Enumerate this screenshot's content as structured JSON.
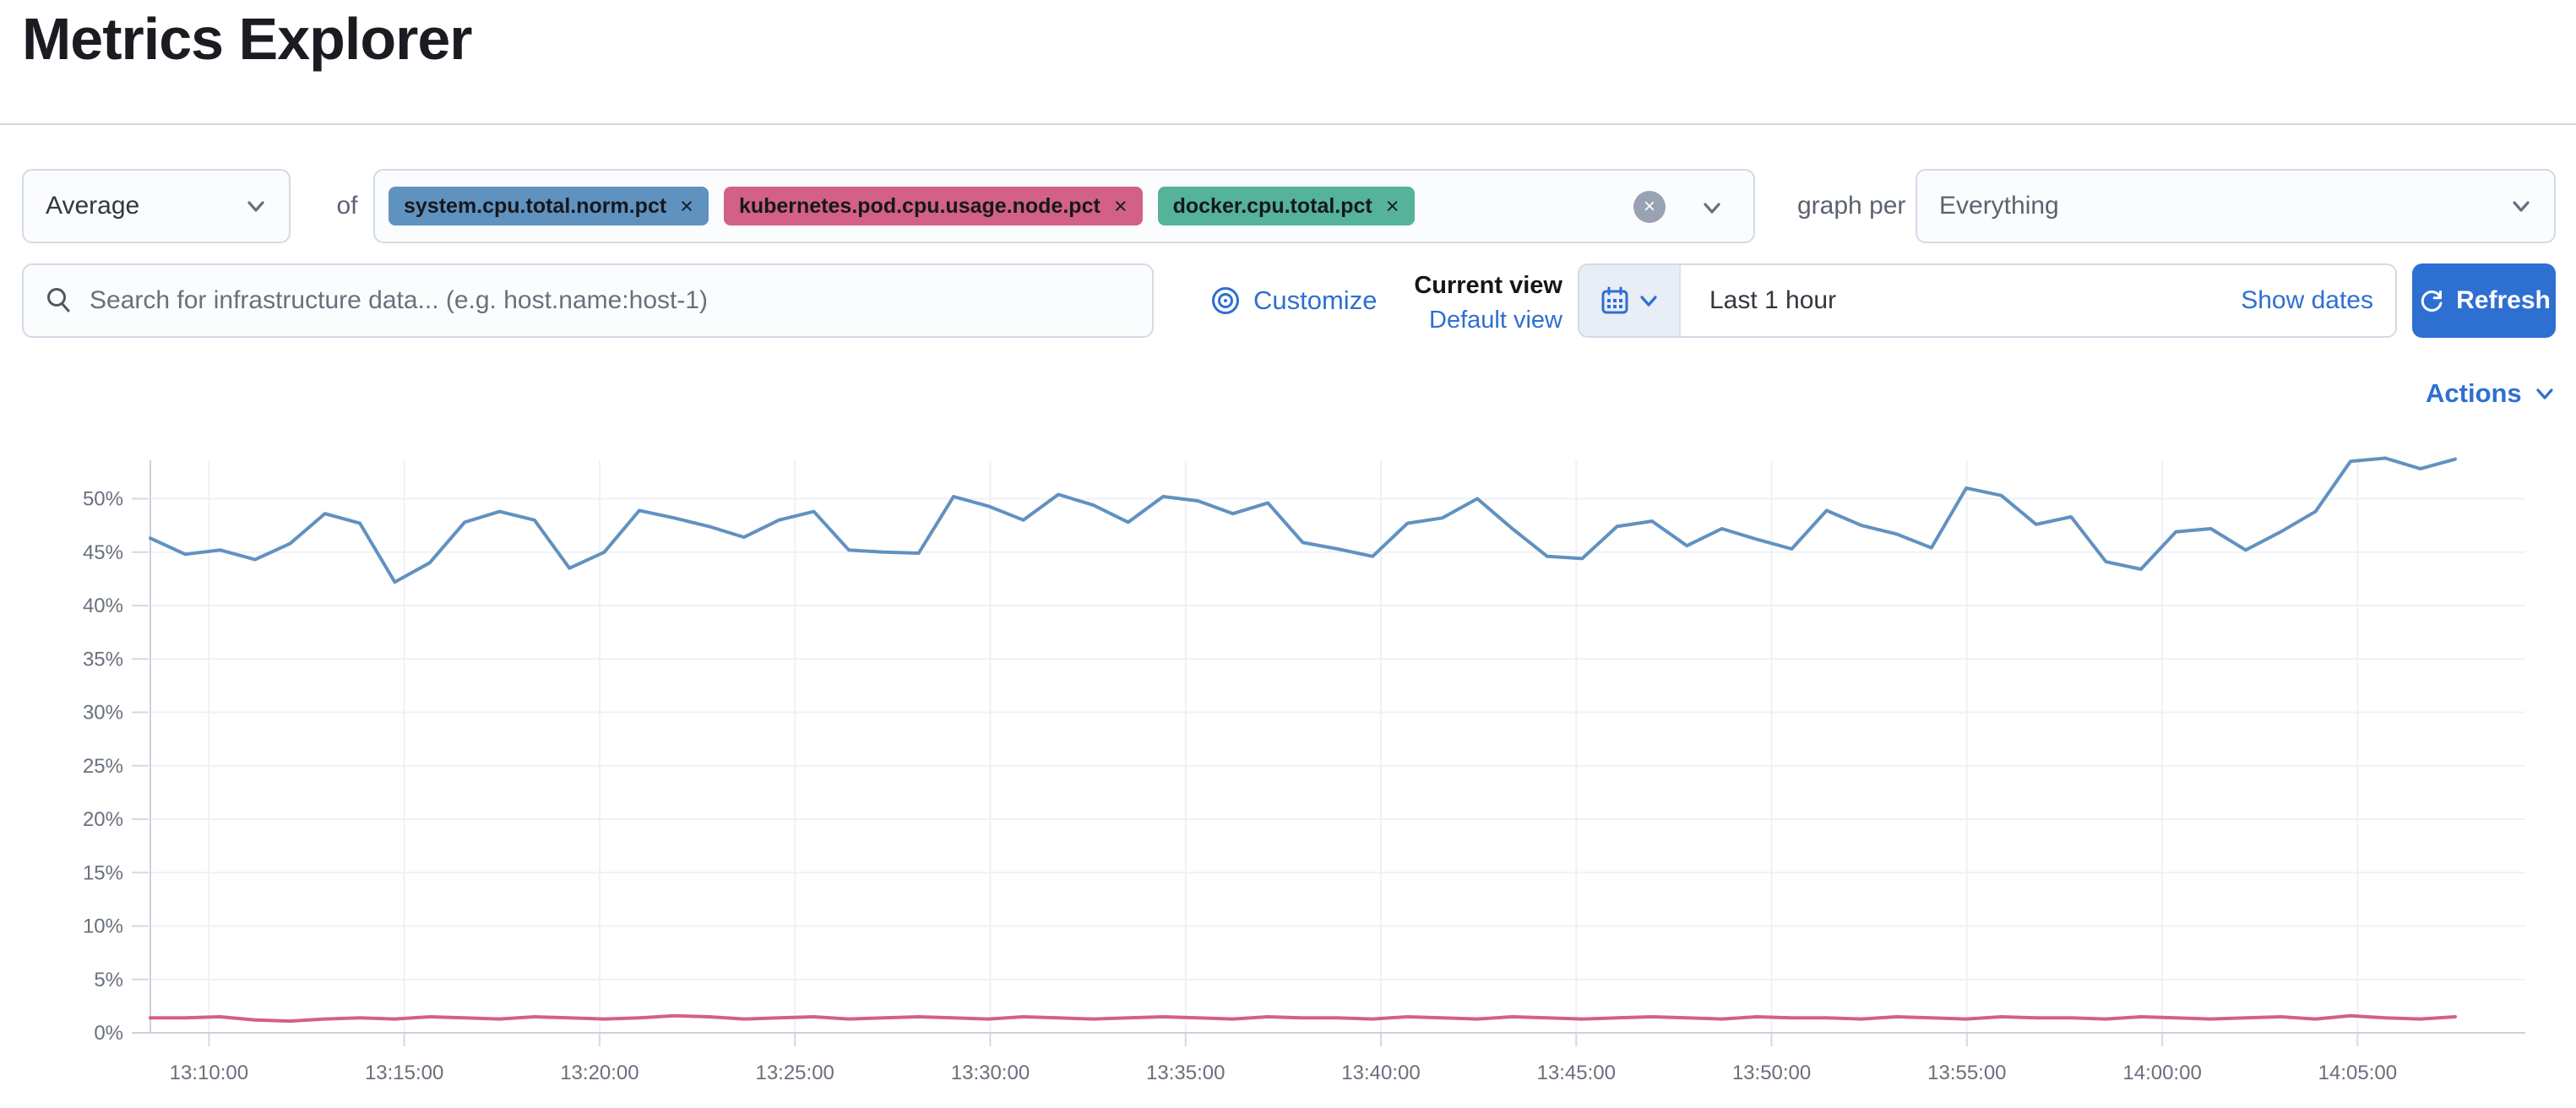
{
  "page": {
    "title": "Metrics Explorer"
  },
  "toolbar": {
    "aggregation": {
      "value": "Average"
    },
    "of_label": "of",
    "metrics": [
      {
        "label": "system.cpu.total.norm.pct",
        "color": "#6092C0",
        "remove_label": "×"
      },
      {
        "label": "kubernetes.pod.cpu.usage.node.pct",
        "color": "#D36086",
        "remove_label": "×"
      },
      {
        "label": "docker.cpu.total.pct",
        "color": "#54B399",
        "remove_label": "×"
      }
    ],
    "clear_label": "×",
    "graph_per_label": "graph per",
    "group_by": {
      "value": "Everything"
    }
  },
  "search": {
    "placeholder": "Search for infrastructure data... (e.g. host.name:host-1)"
  },
  "view_controls": {
    "customize_label": "Customize",
    "current_view_label": "Current view",
    "view_name": "Default view"
  },
  "time_picker": {
    "value": "Last 1 hour",
    "show_dates_label": "Show dates",
    "refresh_label": "Refresh"
  },
  "chart_header": {
    "actions_label": "Actions"
  },
  "chart_data": {
    "type": "line",
    "title": "",
    "xlabel": "",
    "ylabel": "",
    "grid": true,
    "legend_position": "none",
    "y_domain": [
      0,
      53.6
    ],
    "y_ticks": [
      0,
      5,
      10,
      15,
      20,
      25,
      30,
      35,
      40,
      45,
      50
    ],
    "y_tick_suffix": "%",
    "x_domain_minutes": [
      0,
      59
    ],
    "x_ticks": [
      {
        "label": "13:10:00",
        "minute": 1.5
      },
      {
        "label": "13:15:00",
        "minute": 6.5
      },
      {
        "label": "13:20:00",
        "minute": 11.5
      },
      {
        "label": "13:25:00",
        "minute": 16.5
      },
      {
        "label": "13:30:00",
        "minute": 21.5
      },
      {
        "label": "13:35:00",
        "minute": 26.5
      },
      {
        "label": "13:40:00",
        "minute": 31.5
      },
      {
        "label": "13:45:00",
        "minute": 36.5
      },
      {
        "label": "13:50:00",
        "minute": 41.5
      },
      {
        "label": "13:55:00",
        "minute": 46.5
      },
      {
        "label": "14:00:00",
        "minute": 51.5
      },
      {
        "label": "14:05:00",
        "minute": 56.5
      }
    ],
    "series": [
      {
        "name": "system.cpu.total.norm.pct",
        "color": "#6092C0",
        "unit": "%",
        "values": [
          46.3,
          44.8,
          45.2,
          44.3,
          45.8,
          48.6,
          47.7,
          42.2,
          44.0,
          47.8,
          48.8,
          48.0,
          43.5,
          45.0,
          48.9,
          48.2,
          47.4,
          46.4,
          48.0,
          48.8,
          45.2,
          45.0,
          44.9,
          50.2,
          49.3,
          48.0,
          50.4,
          49.4,
          47.8,
          50.2,
          49.8,
          48.6,
          49.6,
          45.9,
          45.3,
          44.6,
          47.7,
          48.2,
          50.0,
          47.2,
          44.6,
          44.4,
          47.4,
          47.9,
          45.6,
          47.2,
          46.2,
          45.3,
          48.9,
          47.5,
          46.7,
          45.4,
          51.0,
          50.3,
          47.6,
          48.3,
          44.1,
          43.4,
          46.9,
          47.2,
          45.2,
          46.9,
          48.8,
          53.5,
          53.8,
          52.8,
          53.7
        ]
      },
      {
        "name": "kubernetes.pod.cpu.usage.node.pct",
        "color": "#D36086",
        "unit": "%",
        "values": [
          1.4,
          1.4,
          1.5,
          1.2,
          1.1,
          1.3,
          1.4,
          1.3,
          1.5,
          1.4,
          1.3,
          1.5,
          1.4,
          1.3,
          1.4,
          1.6,
          1.5,
          1.3,
          1.4,
          1.5,
          1.3,
          1.4,
          1.5,
          1.4,
          1.3,
          1.5,
          1.4,
          1.3,
          1.4,
          1.5,
          1.4,
          1.3,
          1.5,
          1.4,
          1.4,
          1.3,
          1.5,
          1.4,
          1.3,
          1.5,
          1.4,
          1.3,
          1.4,
          1.5,
          1.4,
          1.3,
          1.5,
          1.4,
          1.4,
          1.3,
          1.5,
          1.4,
          1.3,
          1.5,
          1.4,
          1.4,
          1.3,
          1.5,
          1.4,
          1.3,
          1.4,
          1.5,
          1.3,
          1.6,
          1.4,
          1.3,
          1.5
        ]
      }
    ]
  }
}
